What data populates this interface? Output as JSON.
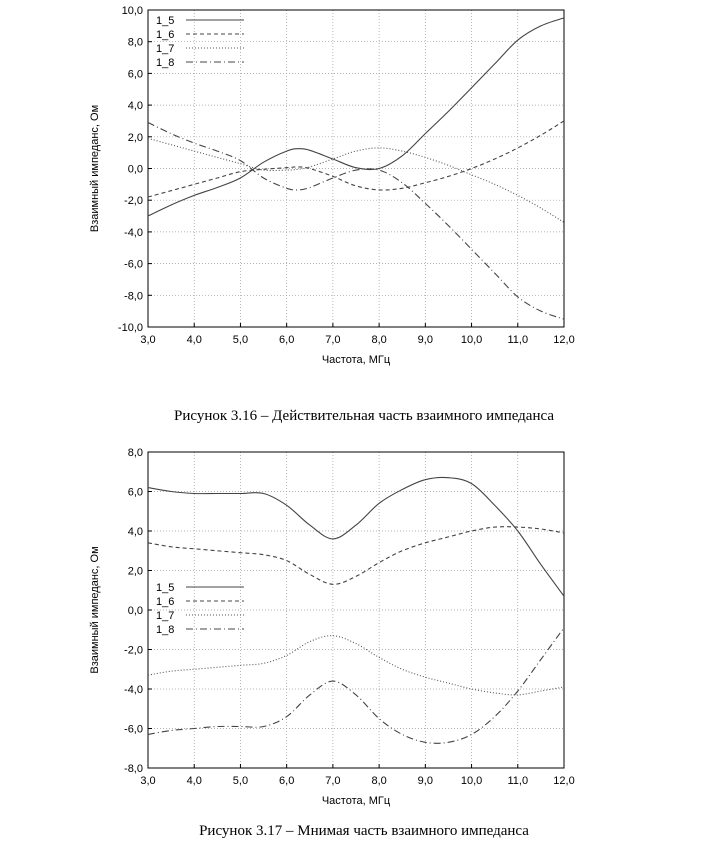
{
  "captions": {
    "fig1": "Рисунок 3.16 – Действительная часть взаимного импеданса",
    "fig2": "Рисунок 3.17 – Мнимая часть взаимного импеданса"
  },
  "chart_data": [
    {
      "type": "line",
      "title": "",
      "xlabel": "Частота, МГц",
      "ylabel": "Взаимный импеданс, Ом",
      "xlim": [
        3,
        12
      ],
      "ylim": [
        -10,
        10
      ],
      "xticks": [
        "3,0",
        "4,0",
        "5,0",
        "6,0",
        "7,0",
        "8,0",
        "9,0",
        "10,0",
        "11,0",
        "12,0"
      ],
      "yticks": [
        "10,0",
        "8,0",
        "6,0",
        "4,0",
        "2,0",
        "0,0",
        "-2,0",
        "-4,0",
        "-6,0",
        "-8,0",
        "-10,0"
      ],
      "grid": true,
      "legend_position": "top-left",
      "x": [
        3.0,
        3.5,
        4.0,
        4.5,
        5.0,
        5.5,
        6.0,
        6.25,
        6.5,
        7.0,
        7.5,
        8.0,
        8.5,
        9.0,
        9.5,
        10.0,
        10.5,
        11.0,
        11.5,
        12.0
      ],
      "series": [
        {
          "name": "1_5",
          "style": "solid",
          "values": [
            -3.0,
            -2.3,
            -1.7,
            -1.2,
            -0.6,
            0.4,
            1.1,
            1.25,
            1.15,
            0.6,
            0.05,
            0.0,
            0.8,
            2.2,
            3.6,
            5.1,
            6.6,
            8.1,
            9.0,
            9.5
          ]
        },
        {
          "name": "1_6",
          "style": "dashed",
          "values": [
            -1.8,
            -1.4,
            -1.0,
            -0.6,
            -0.2,
            -0.05,
            0.05,
            0.1,
            0.0,
            -0.5,
            -1.1,
            -1.35,
            -1.25,
            -0.9,
            -0.5,
            0.0,
            0.6,
            1.3,
            2.1,
            3.0
          ]
        },
        {
          "name": "1_7",
          "style": "dotted",
          "values": [
            1.9,
            1.5,
            1.1,
            0.7,
            0.3,
            -0.1,
            -0.1,
            -0.05,
            0.1,
            0.6,
            1.1,
            1.3,
            1.1,
            0.7,
            0.2,
            -0.4,
            -1.0,
            -1.7,
            -2.5,
            -3.4
          ]
        },
        {
          "name": "1_8",
          "style": "dashdot",
          "values": [
            2.9,
            2.2,
            1.6,
            1.1,
            0.5,
            -0.6,
            -1.25,
            -1.35,
            -1.2,
            -0.6,
            -0.1,
            -0.1,
            -0.9,
            -2.2,
            -3.6,
            -5.1,
            -6.6,
            -8.1,
            -9.0,
            -9.5
          ]
        }
      ]
    },
    {
      "type": "line",
      "title": "",
      "xlabel": "Частота, МГц",
      "ylabel": "Взаимный импеданс, Ом",
      "xlim": [
        3,
        12
      ],
      "ylim": [
        -8,
        8
      ],
      "xticks": [
        "3,0",
        "4,0",
        "5,0",
        "6,0",
        "7,0",
        "8,0",
        "9,0",
        "10,0",
        "11,0",
        "12,0"
      ],
      "yticks": [
        "8,0",
        "6,0",
        "4,0",
        "2,0",
        "0,0",
        "-2,0",
        "-4,0",
        "-6,0",
        "-8,0"
      ],
      "grid": true,
      "legend_position": "middle-left",
      "x": [
        3.0,
        3.5,
        4.0,
        4.5,
        5.0,
        5.5,
        6.0,
        6.5,
        7.0,
        7.5,
        8.0,
        8.5,
        9.0,
        9.5,
        10.0,
        10.5,
        11.0,
        11.5,
        12.0
      ],
      "series": [
        {
          "name": "1_5",
          "style": "solid",
          "values": [
            6.2,
            6.0,
            5.9,
            5.9,
            5.9,
            5.9,
            5.3,
            4.3,
            3.6,
            4.3,
            5.4,
            6.1,
            6.6,
            6.7,
            6.4,
            5.3,
            4.0,
            2.3,
            0.7
          ]
        },
        {
          "name": "1_6",
          "style": "dashed",
          "values": [
            3.4,
            3.2,
            3.1,
            3.0,
            2.9,
            2.8,
            2.5,
            1.8,
            1.3,
            1.7,
            2.4,
            3.0,
            3.4,
            3.7,
            4.0,
            4.2,
            4.2,
            4.1,
            3.9
          ]
        },
        {
          "name": "1_7",
          "style": "dotted",
          "values": [
            -3.3,
            -3.1,
            -3.0,
            -2.9,
            -2.8,
            -2.7,
            -2.3,
            -1.6,
            -1.3,
            -1.7,
            -2.4,
            -3.0,
            -3.4,
            -3.7,
            -4.0,
            -4.2,
            -4.3,
            -4.1,
            -3.9
          ]
        },
        {
          "name": "1_8",
          "style": "dashdot",
          "values": [
            -6.3,
            -6.1,
            -6.0,
            -5.9,
            -5.9,
            -5.9,
            -5.4,
            -4.3,
            -3.6,
            -4.3,
            -5.5,
            -6.3,
            -6.7,
            -6.7,
            -6.3,
            -5.4,
            -4.1,
            -2.5,
            -0.9
          ]
        }
      ]
    }
  ]
}
